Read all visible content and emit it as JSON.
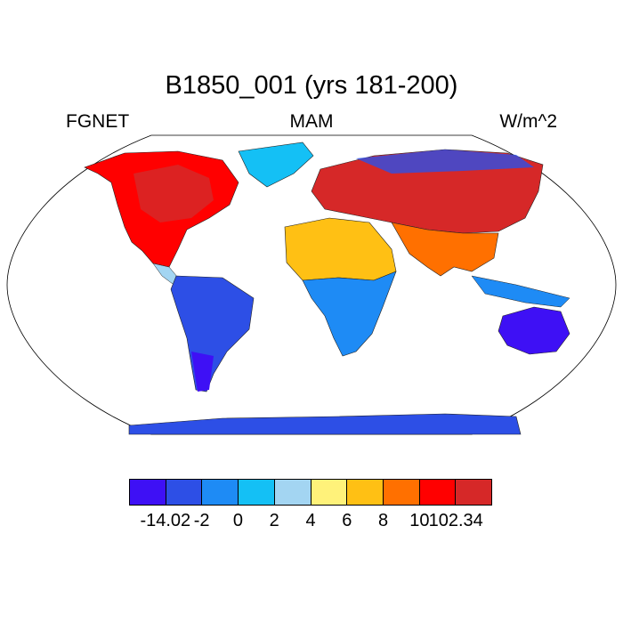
{
  "map": {
    "title": "B1850_001 (yrs 181-200)",
    "left_label": "FGNET",
    "center_label": "MAM",
    "right_label": "W/m^2"
  },
  "colorbar": {
    "colors": [
      "#3e10f5",
      "#2d4fe6",
      "#1e8bf5",
      "#14c0f5",
      "#a3d5f2",
      "#fff27a",
      "#ffc014",
      "#ff7000",
      "#ff0000",
      "#d62828"
    ],
    "tick_labels": [
      "-14.02",
      "-2",
      "0",
      "2",
      "4",
      "6",
      "8",
      "10",
      "102.34"
    ]
  },
  "regions": [
    {
      "name": "north-america",
      "level": 8
    },
    {
      "name": "south-america",
      "level": 1
    },
    {
      "name": "africa-north",
      "level": 6
    },
    {
      "name": "africa-south",
      "level": 2
    },
    {
      "name": "europe-asia",
      "level": 9
    },
    {
      "name": "south-asia",
      "level": 7
    },
    {
      "name": "australia",
      "level": 0
    },
    {
      "name": "antarctica",
      "level": 1
    },
    {
      "name": "greenland",
      "level": 3
    }
  ]
}
